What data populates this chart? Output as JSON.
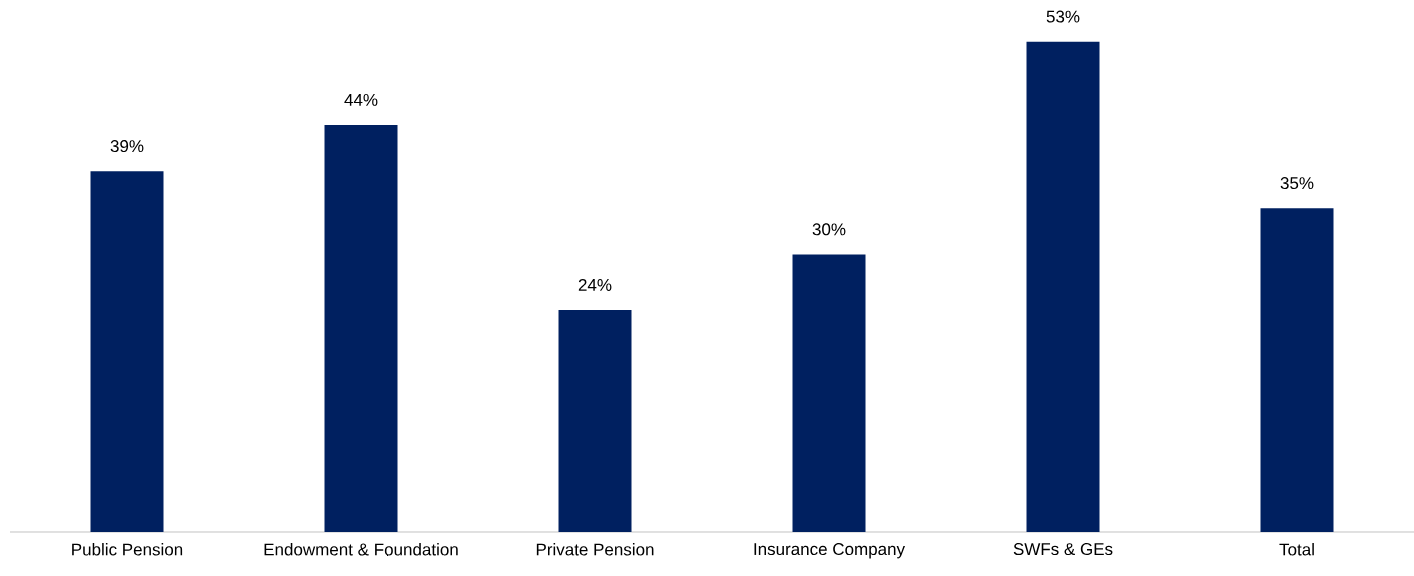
{
  "chart_data": {
    "type": "bar",
    "categories": [
      "Public Pension",
      "Endowment & Foundation",
      "Private Pension",
      "Insurance Company",
      "SWFs & GEs",
      "Total"
    ],
    "values": [
      39,
      44,
      24,
      30,
      53,
      35
    ],
    "value_labels": [
      "39%",
      "44%",
      "24%",
      "30%",
      "53%",
      "35%"
    ],
    "color": "#002060"
  }
}
